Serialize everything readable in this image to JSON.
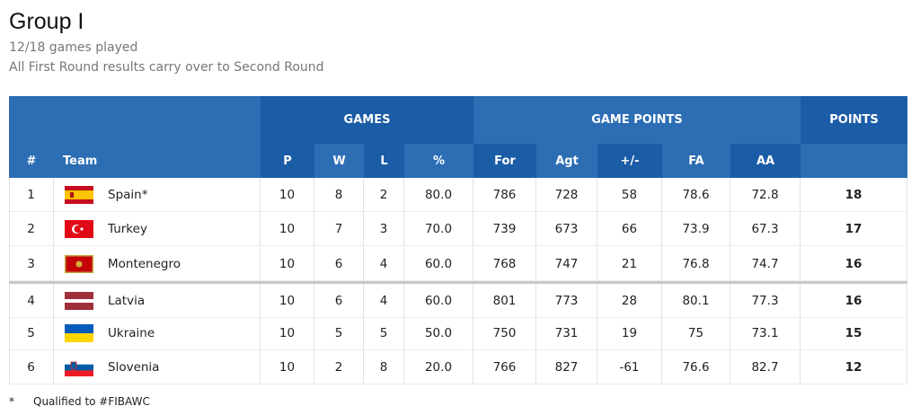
{
  "header": {
    "title": "Group I",
    "subtitle": "12/18 games played",
    "note": "All First Round results carry over to Second Round"
  },
  "table": {
    "group_headers": [
      "GAMES",
      "GAME POINTS",
      "POINTS"
    ],
    "columns": [
      "#",
      "Team",
      "P",
      "W",
      "L",
      "%",
      "For",
      "Agt",
      "+/-",
      "FA",
      "AA"
    ],
    "rows": [
      [
        "1",
        "Spain*",
        "10",
        "8",
        "2",
        "80.0",
        "786",
        "728",
        "58",
        "78.6",
        "72.8",
        "18"
      ],
      [
        "2",
        "Turkey",
        "10",
        "7",
        "3",
        "70.0",
        "739",
        "673",
        "66",
        "73.9",
        "67.3",
        "17"
      ],
      [
        "3",
        "Montenegro",
        "10",
        "6",
        "4",
        "60.0",
        "768",
        "747",
        "21",
        "76.8",
        "74.7",
        "16"
      ],
      [
        "4",
        "Latvia",
        "10",
        "6",
        "4",
        "60.0",
        "801",
        "773",
        "28",
        "80.1",
        "77.3",
        "16"
      ],
      [
        "5",
        "Ukraine",
        "10",
        "5",
        "5",
        "50.0",
        "750",
        "731",
        "19",
        "75",
        "73.1",
        "15"
      ],
      [
        "6",
        "Slovenia",
        "10",
        "2",
        "8",
        "20.0",
        "766",
        "827",
        "-61",
        "76.6",
        "82.7",
        "12"
      ]
    ]
  },
  "footnote": {
    "symbol": "*",
    "text": "Qualified to #FIBAWC"
  }
}
